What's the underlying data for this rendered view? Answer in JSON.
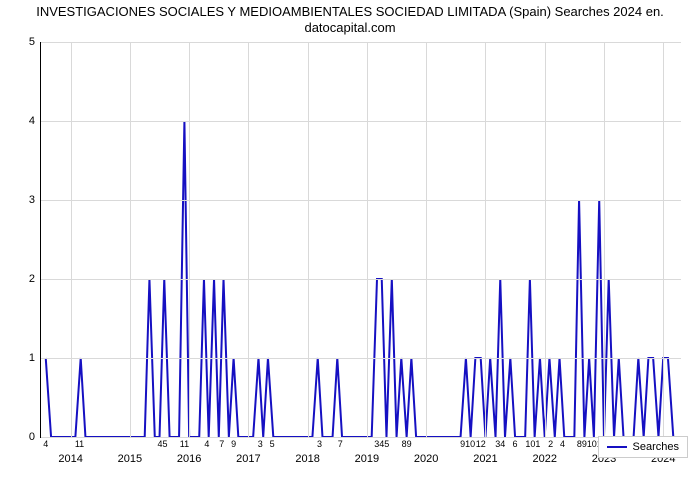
{
  "title_line1": "INVESTIGACIONES SOCIALES Y MEDIOAMBIENTALES SOCIEDAD LIMITADA (Spain) Searches 2024 en.",
  "title_line2": "datocapital.com",
  "chart": {
    "type": "line",
    "line_color": "#1610c2",
    "line_width": 2,
    "grid_color": "#d9d9d9",
    "background_color": "#ffffff",
    "ylim": [
      0,
      5
    ],
    "yticks": [
      0,
      1,
      2,
      3,
      4,
      5
    ],
    "year_ticks": [
      2014,
      2015,
      2016,
      2017,
      2018,
      2019,
      2020,
      2021,
      2022,
      2023,
      2024
    ],
    "x_start_year": 2013.5,
    "x_end_year": 2024.3,
    "minor_labels": [
      {
        "x": 2013.58,
        "t": "4"
      },
      {
        "x": 2014.15,
        "t": "11"
      },
      {
        "x": 2015.55,
        "t": "45"
      },
      {
        "x": 2015.92,
        "t": "11"
      },
      {
        "x": 2016.3,
        "t": "4"
      },
      {
        "x": 2016.55,
        "t": "7"
      },
      {
        "x": 2016.75,
        "t": "9"
      },
      {
        "x": 2017.2,
        "t": "3"
      },
      {
        "x": 2017.4,
        "t": "5"
      },
      {
        "x": 2018.2,
        "t": "3"
      },
      {
        "x": 2018.55,
        "t": "7"
      },
      {
        "x": 2019.25,
        "t": "345"
      },
      {
        "x": 2019.67,
        "t": "89"
      },
      {
        "x": 2020.7,
        "t": "910"
      },
      {
        "x": 2020.92,
        "t": "12"
      },
      {
        "x": 2021.25,
        "t": "34"
      },
      {
        "x": 2021.5,
        "t": "6"
      },
      {
        "x": 2021.8,
        "t": "101"
      },
      {
        "x": 2022.1,
        "t": "2"
      },
      {
        "x": 2022.3,
        "t": "4"
      },
      {
        "x": 2022.67,
        "t": "891"
      },
      {
        "x": 2022.92,
        "t": "012"
      },
      {
        "x": 2023.3,
        "t": "4"
      },
      {
        "x": 2023.67,
        "t": "8910"
      },
      {
        "x": 2023.92,
        "t": "112"
      }
    ],
    "values": [
      {
        "x": 2013.58,
        "y": 1
      },
      {
        "x": 2013.67,
        "y": 0
      },
      {
        "x": 2014.08,
        "y": 0
      },
      {
        "x": 2014.17,
        "y": 1
      },
      {
        "x": 2014.25,
        "y": 0
      },
      {
        "x": 2015.25,
        "y": 0
      },
      {
        "x": 2015.33,
        "y": 2
      },
      {
        "x": 2015.42,
        "y": 0
      },
      {
        "x": 2015.5,
        "y": 0
      },
      {
        "x": 2015.58,
        "y": 2
      },
      {
        "x": 2015.67,
        "y": 0
      },
      {
        "x": 2015.83,
        "y": 0
      },
      {
        "x": 2015.92,
        "y": 4
      },
      {
        "x": 2016.0,
        "y": 0
      },
      {
        "x": 2016.17,
        "y": 0
      },
      {
        "x": 2016.25,
        "y": 2
      },
      {
        "x": 2016.33,
        "y": 0
      },
      {
        "x": 2016.42,
        "y": 2
      },
      {
        "x": 2016.5,
        "y": 0
      },
      {
        "x": 2016.58,
        "y": 2
      },
      {
        "x": 2016.67,
        "y": 0
      },
      {
        "x": 2016.75,
        "y": 1
      },
      {
        "x": 2016.83,
        "y": 0
      },
      {
        "x": 2017.08,
        "y": 0
      },
      {
        "x": 2017.17,
        "y": 1
      },
      {
        "x": 2017.25,
        "y": 0
      },
      {
        "x": 2017.33,
        "y": 1
      },
      {
        "x": 2017.42,
        "y": 0
      },
      {
        "x": 2018.08,
        "y": 0
      },
      {
        "x": 2018.17,
        "y": 1
      },
      {
        "x": 2018.25,
        "y": 0
      },
      {
        "x": 2018.42,
        "y": 0
      },
      {
        "x": 2018.5,
        "y": 1
      },
      {
        "x": 2018.58,
        "y": 0
      },
      {
        "x": 2019.08,
        "y": 0
      },
      {
        "x": 2019.17,
        "y": 2
      },
      {
        "x": 2019.25,
        "y": 2
      },
      {
        "x": 2019.33,
        "y": 0
      },
      {
        "x": 2019.42,
        "y": 2
      },
      {
        "x": 2019.5,
        "y": 0
      },
      {
        "x": 2019.58,
        "y": 1
      },
      {
        "x": 2019.67,
        "y": 0
      },
      {
        "x": 2019.75,
        "y": 1
      },
      {
        "x": 2019.83,
        "y": 0
      },
      {
        "x": 2020.58,
        "y": 0
      },
      {
        "x": 2020.67,
        "y": 1
      },
      {
        "x": 2020.75,
        "y": 0
      },
      {
        "x": 2020.83,
        "y": 1
      },
      {
        "x": 2020.92,
        "y": 1
      },
      {
        "x": 2021.0,
        "y": 0
      },
      {
        "x": 2021.08,
        "y": 1
      },
      {
        "x": 2021.17,
        "y": 0
      },
      {
        "x": 2021.25,
        "y": 2
      },
      {
        "x": 2021.33,
        "y": 0
      },
      {
        "x": 2021.42,
        "y": 1
      },
      {
        "x": 2021.5,
        "y": 0
      },
      {
        "x": 2021.67,
        "y": 0
      },
      {
        "x": 2021.75,
        "y": 2
      },
      {
        "x": 2021.83,
        "y": 0
      },
      {
        "x": 2021.92,
        "y": 1
      },
      {
        "x": 2022.0,
        "y": 0
      },
      {
        "x": 2022.08,
        "y": 1
      },
      {
        "x": 2022.17,
        "y": 0
      },
      {
        "x": 2022.25,
        "y": 1
      },
      {
        "x": 2022.33,
        "y": 0
      },
      {
        "x": 2022.5,
        "y": 0
      },
      {
        "x": 2022.58,
        "y": 3
      },
      {
        "x": 2022.67,
        "y": 0
      },
      {
        "x": 2022.75,
        "y": 1
      },
      {
        "x": 2022.83,
        "y": 0
      },
      {
        "x": 2022.92,
        "y": 3
      },
      {
        "x": 2023.0,
        "y": 0
      },
      {
        "x": 2023.08,
        "y": 2
      },
      {
        "x": 2023.17,
        "y": 0
      },
      {
        "x": 2023.25,
        "y": 1
      },
      {
        "x": 2023.33,
        "y": 0
      },
      {
        "x": 2023.5,
        "y": 0
      },
      {
        "x": 2023.58,
        "y": 1
      },
      {
        "x": 2023.67,
        "y": 0
      },
      {
        "x": 2023.75,
        "y": 1
      },
      {
        "x": 2023.83,
        "y": 1
      },
      {
        "x": 2023.92,
        "y": 0
      },
      {
        "x": 2024.0,
        "y": 1
      },
      {
        "x": 2024.08,
        "y": 1
      },
      {
        "x": 2024.17,
        "y": 0
      }
    ]
  },
  "legend": {
    "label": "Searches",
    "color": "#1610c2"
  }
}
